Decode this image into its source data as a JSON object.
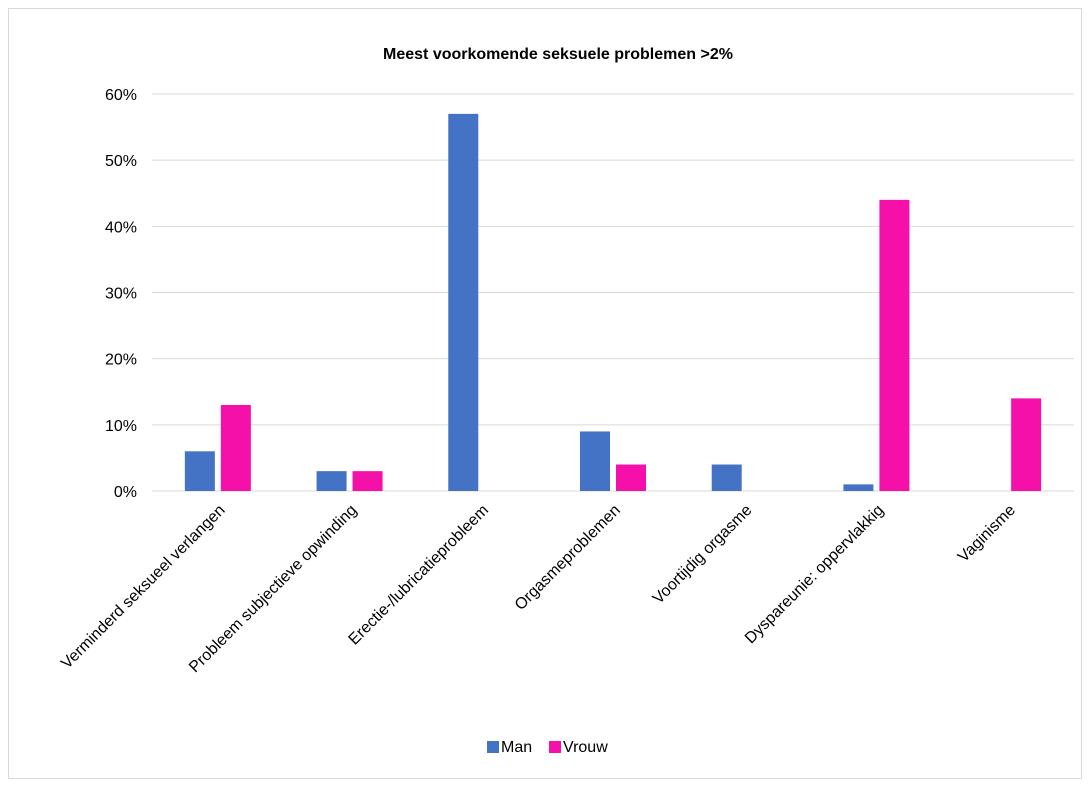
{
  "chart_data": {
    "type": "bar",
    "title": "Meest voorkomende seksuele problemen >2%",
    "xlabel": "",
    "ylabel": "",
    "categories": [
      "Verminderd seksueel verlangen",
      "Probleem subjectieve opwinding",
      "Erectie-/lubricatieprobleem",
      "Orgasmeproblemen",
      "Voortijdig orgasme",
      "Dyspareunie: oppervlakkig",
      "Vaginisme"
    ],
    "series": [
      {
        "name": "Man",
        "color": "#4472C4",
        "values": [
          6,
          3,
          57,
          9,
          4,
          1,
          null
        ]
      },
      {
        "name": "Vrouw",
        "color": "#F511A9",
        "values": [
          13,
          3,
          null,
          4,
          null,
          44,
          14
        ]
      }
    ],
    "ylim": [
      0,
      60
    ],
    "yticks": [
      "0%",
      "10%",
      "20%",
      "30%",
      "40%",
      "50%",
      "60%"
    ],
    "grid": true,
    "legend": "bottom"
  }
}
